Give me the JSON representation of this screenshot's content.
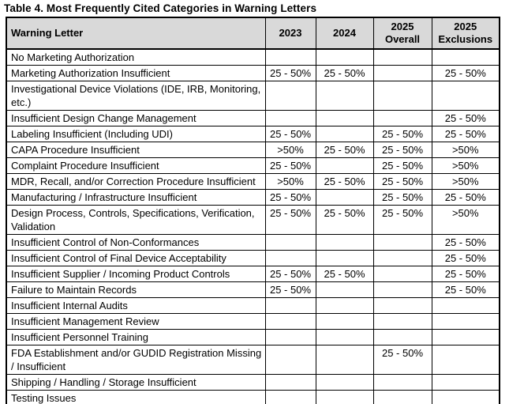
{
  "title": "Table 4. Most Frequently Cited Categories in Warning Letters",
  "table": {
    "columns": [
      "Warning Letter",
      "2023",
      "2024",
      "2025\nOverall",
      "2025\nExclusions"
    ],
    "rows": [
      [
        "No Marketing Authorization",
        "",
        "",
        "",
        ""
      ],
      [
        "Marketing Authorization Insufficient",
        "25 - 50%",
        "25 - 50%",
        "",
        "25 - 50%"
      ],
      [
        "Investigational Device Violations (IDE, IRB, Monitoring, etc.)",
        "",
        "",
        "",
        ""
      ],
      [
        "Insufficient Design Change Management",
        "",
        "",
        "",
        "25 - 50%"
      ],
      [
        "Labeling Insufficient (Including UDI)",
        "25 - 50%",
        "",
        "25 - 50%",
        "25 - 50%"
      ],
      [
        "CAPA Procedure Insufficient",
        ">50%",
        "25 - 50%",
        "25 - 50%",
        ">50%"
      ],
      [
        "Complaint Procedure Insufficient",
        "25 - 50%",
        "",
        "25 - 50%",
        ">50%"
      ],
      [
        "MDR, Recall, and/or Correction Procedure Insufficient",
        ">50%",
        "25 - 50%",
        "25 - 50%",
        ">50%"
      ],
      [
        "Manufacturing / Infrastructure Insufficient",
        "25 - 50%",
        "",
        "25 - 50%",
        "25 - 50%"
      ],
      [
        "Design Process, Controls, Specifications, Verification, Validation",
        "25 - 50%",
        "25 - 50%",
        "25 - 50%",
        ">50%"
      ],
      [
        "Insufficient Control of Non-Conformances",
        "",
        "",
        "",
        "25 - 50%"
      ],
      [
        "Insufficient Control of Final Device Acceptability",
        "",
        "",
        "",
        "25 - 50%"
      ],
      [
        "Insufficient Supplier / Incoming Product Controls",
        "25 - 50%",
        "25 - 50%",
        "",
        "25 - 50%"
      ],
      [
        "Failure to Maintain Records",
        "25 - 50%",
        "",
        "",
        "25 - 50%"
      ],
      [
        "Insufficient Internal Audits",
        "",
        "",
        "",
        ""
      ],
      [
        "Insufficient Management Review",
        "",
        "",
        "",
        ""
      ],
      [
        "Insufficient Personnel Training",
        "",
        "",
        "",
        ""
      ],
      [
        "FDA Establishment and/or GUDID Registration Missing / Insufficient",
        "",
        "",
        "25 - 50%",
        ""
      ],
      [
        "Shipping / Handling / Storage Insufficient",
        "",
        "",
        "",
        ""
      ],
      [
        "Testing Issues",
        "",
        "",
        "",
        ""
      ]
    ]
  },
  "colors": {
    "header_background": "#d9d9d9",
    "border": "#000000",
    "text": "#000000",
    "page_background": "#ffffff"
  }
}
